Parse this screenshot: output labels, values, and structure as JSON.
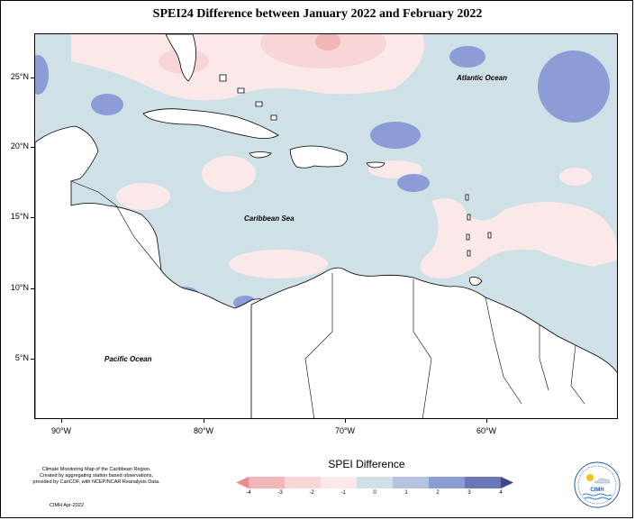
{
  "title": "SPEI24 Difference between January 2022 and February 2022",
  "axes": {
    "y_ticks": [
      "25°N",
      "20°N",
      "15°N",
      "10°N",
      "5°N"
    ],
    "x_ticks": [
      "90°W",
      "80°W",
      "70°W",
      "60°W"
    ]
  },
  "map_labels": {
    "atlantic": "Atlantic Ocean",
    "caribbean": "Caribbean Sea",
    "pacific": "Pacific Ocean"
  },
  "legend": {
    "title": "SPEI Difference",
    "ticks": [
      "-4",
      "-3",
      "-2",
      "-1",
      "0",
      "1",
      "2",
      "3",
      "4"
    ],
    "colors": [
      "#f08a8e",
      "#f3b6b8",
      "#f8d6d7",
      "#fbe9ea",
      "#cfe1e6",
      "#b4c4de",
      "#8b9cd6",
      "#6a78b8",
      "#3f4585"
    ]
  },
  "credit": {
    "lines": [
      "Climate Monitoring Map of the Caribbean Region.",
      "Created by aggregating station based observations,",
      "provided by CariCOF, with NCEP/NCAR Reanalysis Data."
    ],
    "date": "CIMH Apr-2022"
  },
  "logo": {
    "text": "CIMH",
    "icon": "cimh-logo-icon"
  }
}
